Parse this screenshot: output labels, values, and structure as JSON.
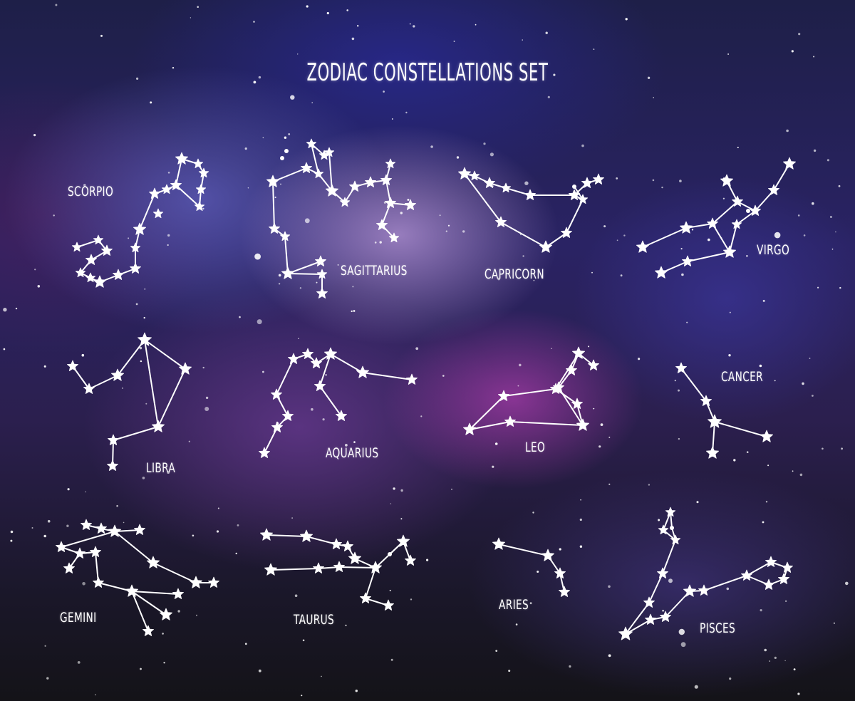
{
  "title": "ZODIAC CONSTELLATIONS SET",
  "colors": {
    "star": "#ffffff",
    "line": "#ffffff"
  },
  "constellations": [
    {
      "key": "scorpio",
      "label": "SCORPIO"
    },
    {
      "key": "sagittarius",
      "label": "SAGITTARIUS"
    },
    {
      "key": "capricorn",
      "label": "CAPRICORN"
    },
    {
      "key": "virgo",
      "label": "VIRGO"
    },
    {
      "key": "libra",
      "label": "LIBRA"
    },
    {
      "key": "aquarius",
      "label": "AQUARIUS"
    },
    {
      "key": "leo",
      "label": "LEO"
    },
    {
      "key": "cancer",
      "label": "CANCER"
    },
    {
      "key": "gemini",
      "label": "GEMINI"
    },
    {
      "key": "taurus",
      "label": "TAURUS"
    },
    {
      "key": "aries",
      "label": "ARIES"
    },
    {
      "key": "pisces",
      "label": "PISCES"
    }
  ]
}
